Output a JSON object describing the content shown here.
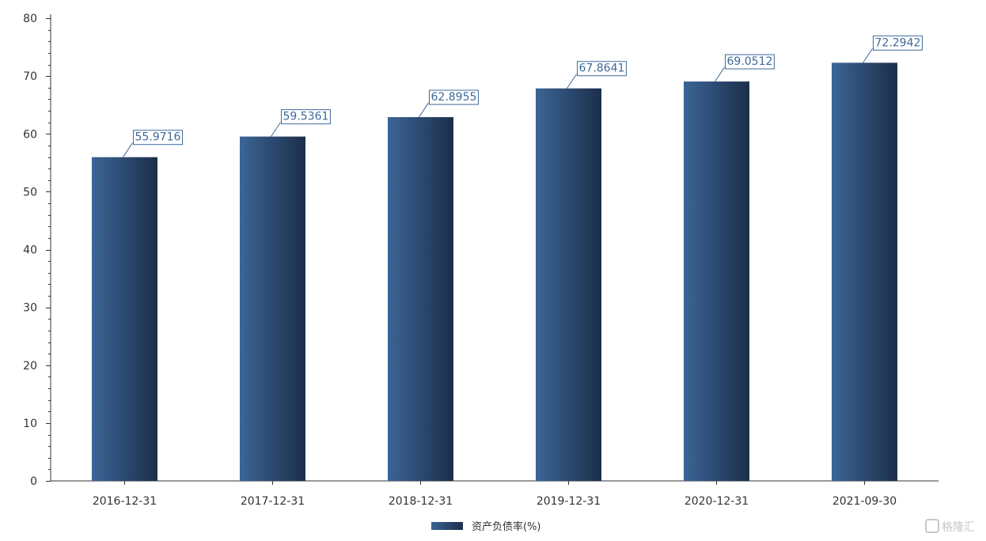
{
  "chart_data": {
    "type": "bar",
    "categories": [
      "2016-12-31",
      "2017-12-31",
      "2018-12-31",
      "2019-12-31",
      "2020-12-31",
      "2021-09-30"
    ],
    "series": [
      {
        "name": "资产负债率(%)",
        "values": [
          55.9716,
          59.5361,
          62.8955,
          67.8641,
          69.0512,
          72.2942
        ]
      }
    ],
    "data_labels": [
      "55.9716",
      "59.5361",
      "62.8955",
      "67.8641",
      "69.0512",
      "72.2942"
    ],
    "ylim": [
      0,
      80
    ],
    "yticks": [
      0,
      10,
      20,
      30,
      40,
      50,
      60,
      70,
      80
    ],
    "title": "",
    "xlabel": "",
    "ylabel": "",
    "legend_position": "bottom-center",
    "grid": false,
    "colors": {
      "bar_light": "#3b6596",
      "bar_dark": "#1c2e4a",
      "axis": "#333333",
      "label_border": "#3d6a99"
    }
  },
  "watermark": "格隆汇"
}
